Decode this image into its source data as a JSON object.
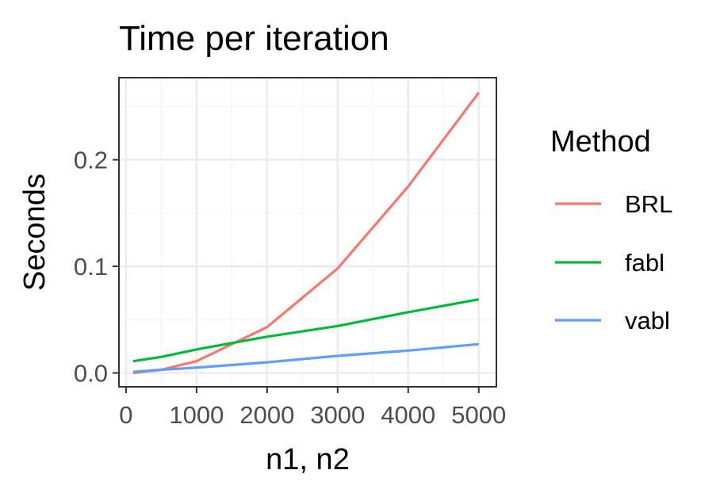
{
  "chart_data": {
    "type": "line",
    "title": "Time per iteration",
    "xlabel": "n1, n2",
    "ylabel": "Seconds",
    "xlim": [
      -100,
      5250
    ],
    "ylim": [
      -0.013,
      0.277
    ],
    "x_ticks": [
      0,
      1000,
      2000,
      3000,
      4000,
      5000
    ],
    "x_tick_labels": [
      "0",
      "1000",
      "2000",
      "3000",
      "4000",
      "5000"
    ],
    "y_ticks": [
      0.0,
      0.1,
      0.2
    ],
    "y_tick_labels": [
      "0.0",
      "0.1",
      "0.2"
    ],
    "grid": true,
    "legend": {
      "title": "Method",
      "position": "right"
    },
    "x": [
      100,
      500,
      1000,
      2000,
      3000,
      4000,
      5000
    ],
    "series": [
      {
        "name": "BRL",
        "color": "#F8766D",
        "values": [
          0.0,
          0.003,
          0.011,
          0.043,
          0.098,
          0.175,
          0.263
        ]
      },
      {
        "name": "fabl",
        "color": "#00BA38",
        "values": [
          0.011,
          0.015,
          0.022,
          0.034,
          0.044,
          0.057,
          0.069
        ]
      },
      {
        "name": "vabl",
        "color": "#619CFF",
        "values": [
          0.001,
          0.003,
          0.005,
          0.01,
          0.016,
          0.021,
          0.027
        ]
      }
    ]
  }
}
